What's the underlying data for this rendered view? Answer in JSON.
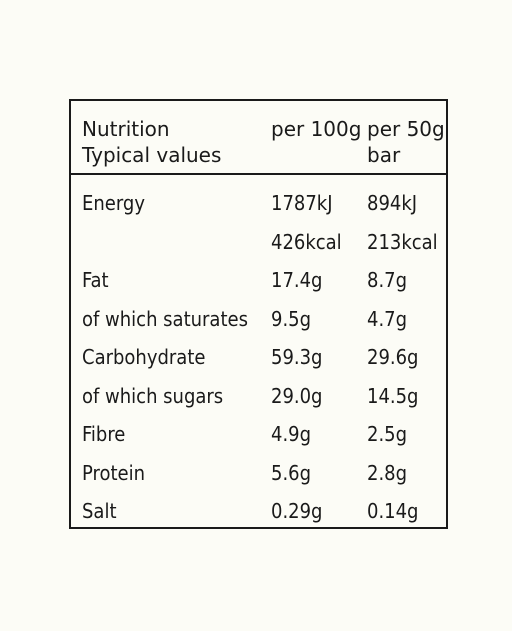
{
  "header": {
    "label_line1": "Nutrition",
    "label_line2": "Typical values",
    "col1": "per 100g",
    "col2_line1": "per 50g",
    "col2_line2": "bar"
  },
  "rows": [
    {
      "label": "Energy",
      "per100g": "1787kJ",
      "perbar": "894kJ"
    },
    {
      "label": "",
      "per100g": "426kcal",
      "perbar": "213kcal"
    },
    {
      "label": "Fat",
      "per100g": "17.4g",
      "perbar": "8.7g"
    },
    {
      "label": "of which saturates",
      "per100g": "9.5g",
      "perbar": "4.7g"
    },
    {
      "label": "Carbohydrate",
      "per100g": "59.3g",
      "perbar": "29.6g"
    },
    {
      "label": "of which sugars",
      "per100g": "29.0g",
      "perbar": "14.5g"
    },
    {
      "label": "Fibre",
      "per100g": "4.9g",
      "perbar": "2.5g"
    },
    {
      "label": "Protein",
      "per100g": "5.6g",
      "perbar": "2.8g"
    },
    {
      "label": "Salt",
      "per100g": "0.29g",
      "perbar": "0.14g"
    }
  ]
}
